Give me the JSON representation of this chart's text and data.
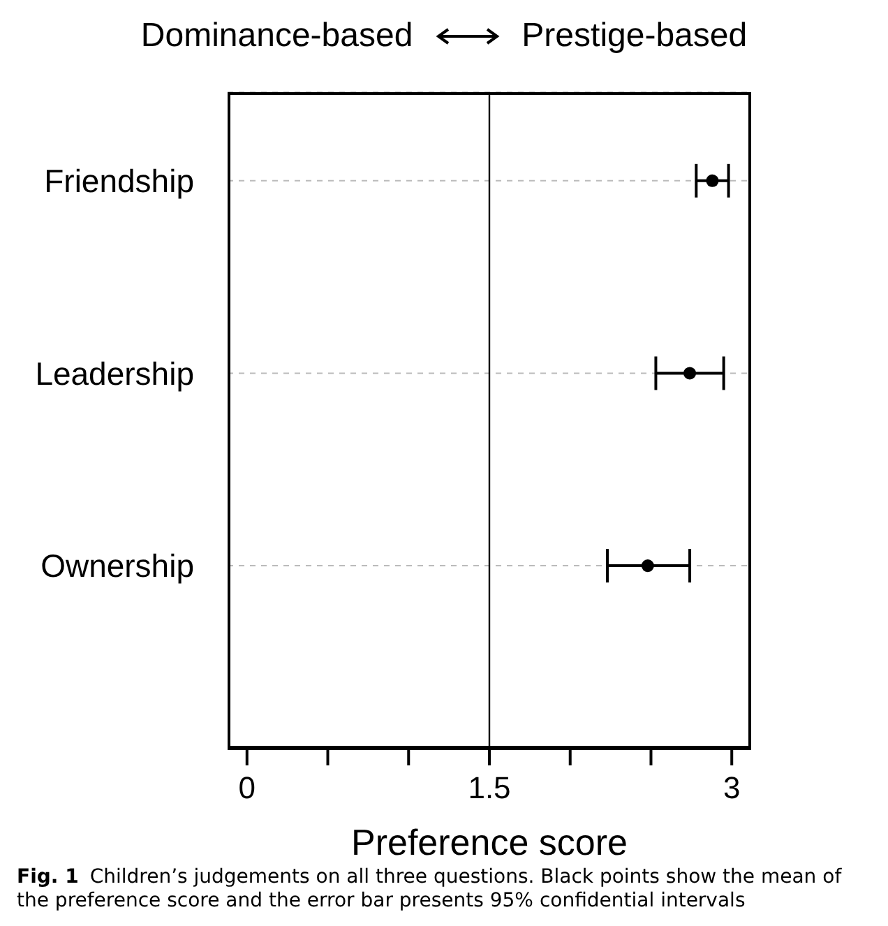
{
  "chart_data": {
    "type": "scatter",
    "orientation": "horizontal",
    "xlabel": "Preference score",
    "categories": [
      "Friendship",
      "Leadership",
      "Ownership"
    ],
    "values": [
      2.88,
      2.74,
      2.48
    ],
    "color": "#000000",
    "errors": [
      [
        2.78,
        2.98
      ],
      [
        2.53,
        2.95
      ],
      [
        2.23,
        2.74
      ]
    ],
    "xlim": [
      -0.12,
      3.12
    ],
    "xticks": [
      0,
      {
        "value": 0.5,
        "label": null
      },
      {
        "value": 1,
        "label": null
      },
      1.5,
      {
        "value": 2,
        "label": null
      },
      {
        "value": 2.5,
        "label": null
      },
      3
    ],
    "ref_lines": [
      {
        "axis": "x",
        "value": 1.5,
        "color": "#000000"
      }
    ],
    "grid": "y",
    "marker": "circle",
    "annotations": [
      "Dominance-based",
      "Prestige-based",
      "Fig. 1",
      "Children’s judgements on all three questions. Black points show the mean of the preference score and the error bar presents 95% confidential intervals"
    ]
  }
}
